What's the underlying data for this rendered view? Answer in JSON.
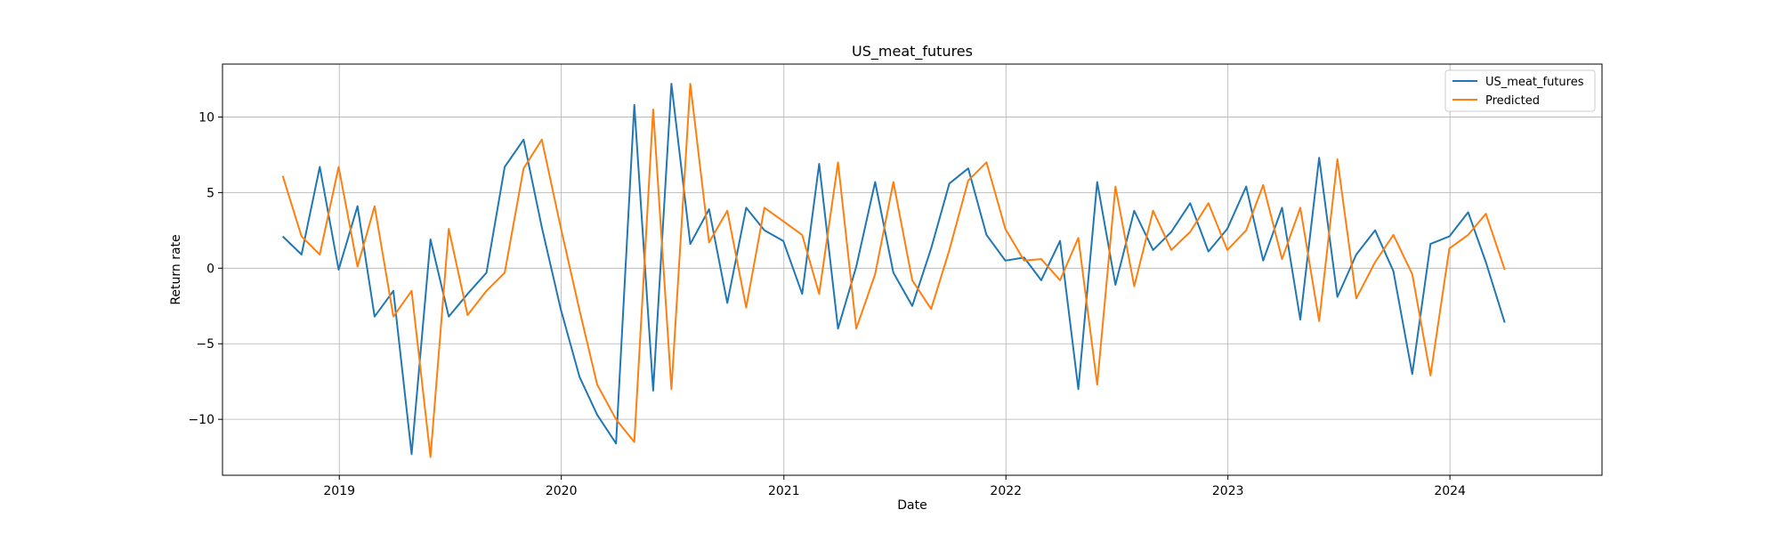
{
  "chart_data": {
    "type": "line",
    "title": "US_meat_futures",
    "xlabel": "Date",
    "ylabel": "Return rate",
    "xlim": [
      "2018-06-23",
      "2024-09-07"
    ],
    "ylim": [
      -13.7,
      13.5
    ],
    "x_ticks": [
      "2019",
      "2020",
      "2021",
      "2022",
      "2023",
      "2024"
    ],
    "y_ticks": [
      10,
      5,
      0,
      -5,
      -10
    ],
    "y_tick_labels": [
      "10",
      "5",
      "0",
      "−5",
      "−10"
    ],
    "grid": true,
    "legend_position": "top-right",
    "x": [
      "2018-09-30",
      "2018-10-31",
      "2018-11-30",
      "2018-12-31",
      "2019-01-31",
      "2019-02-28",
      "2019-03-31",
      "2019-04-30",
      "2019-05-31",
      "2019-06-30",
      "2019-07-31",
      "2019-08-31",
      "2019-09-30",
      "2019-10-31",
      "2019-11-30",
      "2019-12-31",
      "2020-01-31",
      "2020-02-29",
      "2020-03-31",
      "2020-04-30",
      "2020-05-31",
      "2020-06-30",
      "2020-07-31",
      "2020-08-31",
      "2020-09-30",
      "2020-10-31",
      "2020-11-30",
      "2020-12-31",
      "2021-01-31",
      "2021-02-28",
      "2021-03-31",
      "2021-04-30",
      "2021-05-31",
      "2021-06-30",
      "2021-07-31",
      "2021-08-31",
      "2021-09-30",
      "2021-10-31",
      "2021-11-30",
      "2021-12-31",
      "2022-01-31",
      "2022-02-28",
      "2022-03-31",
      "2022-04-30",
      "2022-05-31",
      "2022-06-30",
      "2022-07-31",
      "2022-08-31",
      "2022-09-30",
      "2022-10-31",
      "2022-11-30",
      "2022-12-31",
      "2023-01-31",
      "2023-02-28",
      "2023-03-31",
      "2023-04-30",
      "2023-05-31",
      "2023-06-30",
      "2023-07-31",
      "2023-08-31",
      "2023-09-30",
      "2023-10-31",
      "2023-11-30",
      "2023-12-31",
      "2024-01-31",
      "2024-02-29",
      "2024-03-31"
    ],
    "series": [
      {
        "name": "US_meat_futures",
        "color": "#1f77b4",
        "values": [
          2.1,
          0.9,
          6.7,
          -0.1,
          4.1,
          -3.2,
          -1.5,
          -12.3,
          1.9,
          -3.2,
          -1.7,
          -0.3,
          6.7,
          8.5,
          2.7,
          -2.7,
          -7.2,
          -9.7,
          -11.6,
          10.8,
          -8.1,
          12.2,
          1.6,
          3.9,
          -2.3,
          4.0,
          2.5,
          1.8,
          -1.7,
          6.9,
          -4.0,
          0.1,
          5.7,
          -0.3,
          -2.5,
          1.3,
          5.6,
          6.6,
          2.2,
          0.5,
          0.7,
          -0.8,
          1.8,
          -8.0,
          5.7,
          -1.1,
          3.8,
          1.2,
          2.4,
          4.3,
          1.1,
          2.6,
          5.4,
          0.5,
          4.0,
          -3.4,
          7.3,
          -1.9,
          0.9,
          2.5,
          -0.2,
          -7.0,
          1.6,
          2.1,
          3.7,
          0.4,
          -3.6
        ]
      },
      {
        "name": "Predicted",
        "color": "#ff7f0e",
        "values": [
          6.1,
          2.1,
          0.9,
          6.7,
          0.1,
          4.1,
          -3.2,
          -1.5,
          -12.5,
          2.6,
          -3.1,
          -1.5,
          -0.3,
          6.6,
          8.5,
          2.7,
          -2.8,
          -7.7,
          -10.0,
          -11.5,
          10.5,
          -8.0,
          12.2,
          1.7,
          3.8,
          -2.6,
          4.0,
          3.1,
          2.2,
          -1.7,
          7.0,
          -4.0,
          -0.4,
          5.7,
          -0.8,
          -2.7,
          1.2,
          5.8,
          7.0,
          2.6,
          0.5,
          0.6,
          -0.8,
          2.0,
          -7.7,
          5.4,
          -1.2,
          3.8,
          1.2,
          2.4,
          4.3,
          1.2,
          2.5,
          5.5,
          0.6,
          4.0,
          -3.5,
          7.2,
          -2.0,
          0.4,
          2.2,
          -0.4,
          -7.1,
          1.3,
          2.2,
          3.6,
          -0.1
        ]
      }
    ]
  }
}
